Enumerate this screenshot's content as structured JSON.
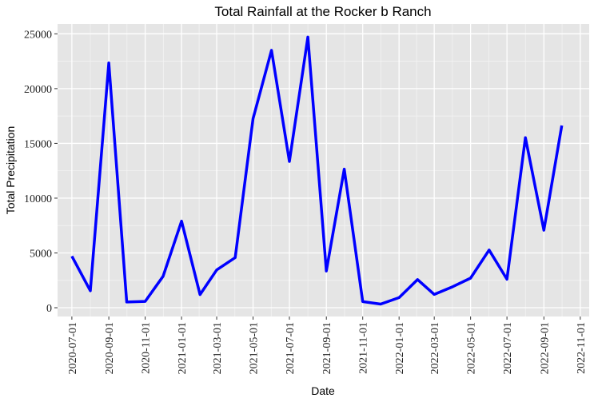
{
  "chart_data": {
    "type": "line",
    "title": "Total Rainfall at the Rocker b Ranch",
    "xlabel": "Date",
    "ylabel": "Total Precipitation",
    "x_ticks": [
      "2020-07-01",
      "2020-09-01",
      "2020-11-01",
      "2021-01-01",
      "2021-03-01",
      "2021-05-01",
      "2021-07-01",
      "2021-09-01",
      "2021-11-01",
      "2022-01-01",
      "2022-03-01",
      "2022-05-01",
      "2022-07-01",
      "2022-09-01",
      "2022-11-01"
    ],
    "y_ticks": [
      0,
      5000,
      10000,
      15000,
      20000,
      25000
    ],
    "xlim": [
      "2020-06-07",
      "2022-11-16"
    ],
    "ylim": [
      -800,
      25900
    ],
    "grid": true,
    "line_color": "#0000ff",
    "panel_color": "#e5e5e5",
    "series": [
      {
        "x": [
          "2020-07-01",
          "2020-08-01",
          "2020-09-01",
          "2020-10-01",
          "2020-11-01",
          "2020-12-01",
          "2021-01-01",
          "2021-02-01",
          "2021-03-01",
          "2021-04-01",
          "2021-05-01",
          "2021-06-01",
          "2021-07-01",
          "2021-08-01",
          "2021-09-01",
          "2021-10-01",
          "2021-11-01",
          "2021-12-01",
          "2022-01-01",
          "2022-02-01",
          "2022-03-01",
          "2022-04-01",
          "2022-05-01",
          "2022-06-01",
          "2022-07-01",
          "2022-08-01",
          "2022-09-01",
          "2022-10-01"
        ],
        "values": [
          4700,
          1550,
          22350,
          520,
          580,
          2870,
          7900,
          1200,
          3450,
          4580,
          17250,
          23500,
          13350,
          24700,
          3350,
          12650,
          560,
          330,
          920,
          2570,
          1210,
          1920,
          2700,
          5270,
          2600,
          15530,
          7080,
          16630
        ]
      }
    ]
  }
}
